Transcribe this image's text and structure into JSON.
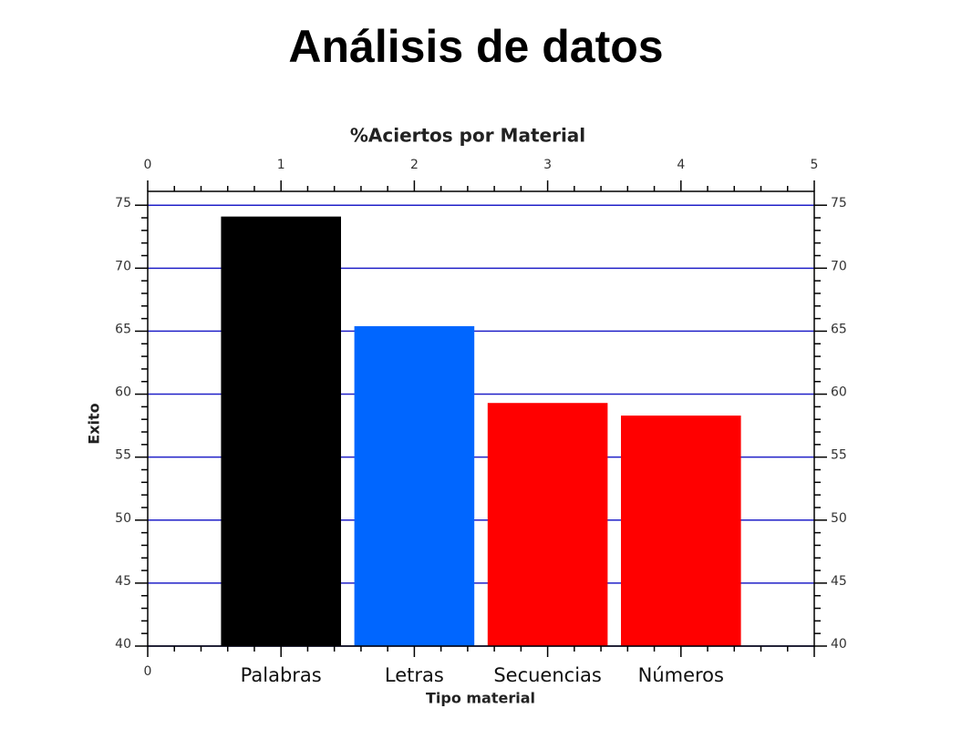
{
  "chart_data": {
    "type": "bar",
    "slide_title": "Análisis de datos",
    "title": "%Aciertos por Material",
    "xlabel": "Tipo material",
    "ylabel": "Exito",
    "categories": [
      "Palabras",
      "Letras",
      "Secuencias",
      "Números"
    ],
    "x": [
      1,
      2,
      3,
      4
    ],
    "values": [
      74.1,
      65.4,
      59.3,
      58.3
    ],
    "colors": [
      "#000000",
      "#0066ff",
      "#ff0000",
      "#ff0000"
    ],
    "bar_width": 0.9,
    "xlim": [
      0,
      5
    ],
    "xticks": [
      0,
      1,
      2,
      3,
      4,
      5
    ],
    "bottom_xticks": [
      0
    ],
    "ylim": [
      40,
      76.1
    ],
    "yticks": [
      40,
      45,
      50,
      55,
      60,
      65,
      70,
      75
    ],
    "grid": true,
    "grid_color": "#2020c8",
    "minor_ticks": true
  }
}
